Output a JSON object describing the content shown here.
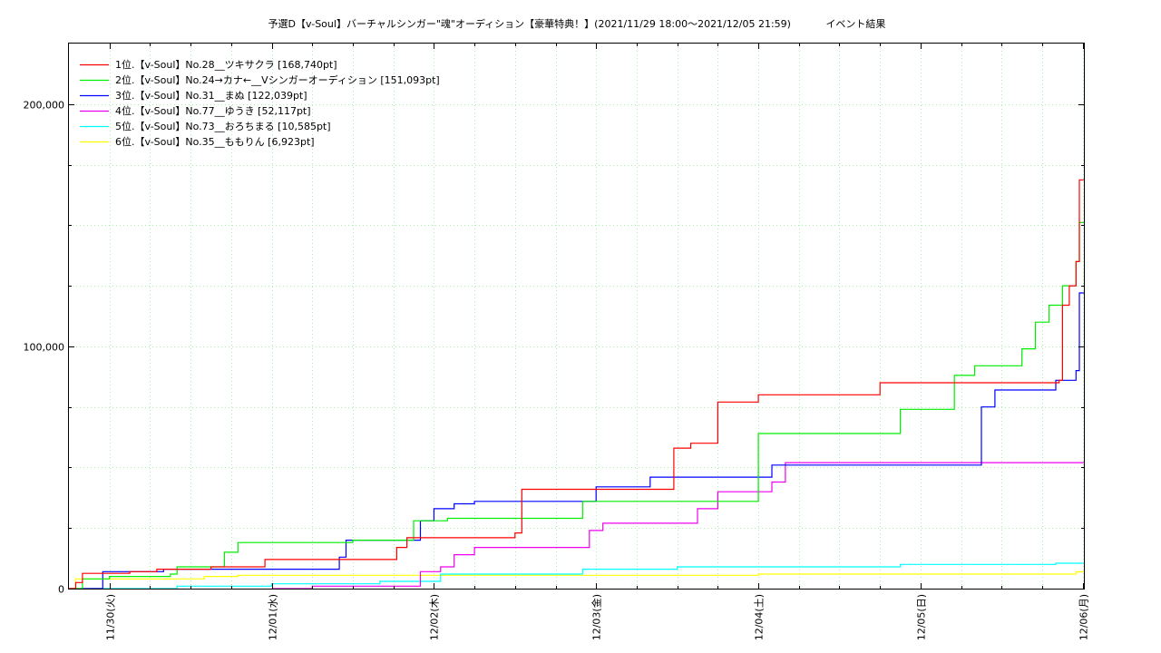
{
  "chart_data": {
    "type": "line",
    "title": "予選D【v-Soul】バーチャルシンガー\"魂\"オーディション【豪華特典！】(2021/11/29 18:00～2021/12/05 21:59)",
    "subtitle": "イベント結果",
    "xlabel": "",
    "ylabel": "",
    "x_ticks": [
      "11/30(火)",
      "12/01(水)",
      "12/02(木)",
      "12/03(金)",
      "12/04(土)",
      "12/05(日)",
      "12/06(月)"
    ],
    "xlim": [
      "2021/11/29 18:00",
      "2021/12/06 00:10"
    ],
    "y_ticks": [
      "0",
      "100,000",
      "200,000"
    ],
    "ylim": [
      0,
      225000
    ],
    "grid": true,
    "legend_position": "top-left",
    "series": [
      {
        "name": "1位.【v-Soul】No.28__ツキサクラ [168,740pt]",
        "color": "#ff0000",
        "points": [
          [
            "11/29 18:00",
            0
          ],
          [
            "11/29 19:00",
            2500
          ],
          [
            "11/29 20:00",
            6300
          ],
          [
            "11/30 03:00",
            7000
          ],
          [
            "11/30 07:00",
            8000
          ],
          [
            "11/30 15:00",
            9000
          ],
          [
            "11/30 23:00",
            12000
          ],
          [
            "12/01 17:00",
            12000
          ],
          [
            "12/01 18:30",
            17000
          ],
          [
            "12/01 20:00",
            21000
          ],
          [
            "12/02 12:00",
            23000
          ],
          [
            "12/02 13:00",
            41000
          ],
          [
            "12/03 11:00",
            41000
          ],
          [
            "12/03 11:30",
            58000
          ],
          [
            "12/03 14:00",
            60000
          ],
          [
            "12/03 18:00",
            77000
          ],
          [
            "12/03 22:00",
            77000
          ],
          [
            "12/04 00:00",
            80000
          ],
          [
            "12/04 12:00",
            80000
          ],
          [
            "12/04 17:00",
            80000
          ],
          [
            "12/04 18:00",
            85000
          ],
          [
            "12/05 19:00",
            85000
          ],
          [
            "12/05 20:30",
            86000
          ],
          [
            "12/05 21:00",
            117000
          ],
          [
            "12/05 22:00",
            125000
          ],
          [
            "12/05 23:00",
            135000
          ],
          [
            "12/05 23:30",
            168740
          ],
          [
            "12/06 00:10",
            168740
          ]
        ]
      },
      {
        "name": "2位.【v-Soul】No.24→カナ←__Vシンガーオーディション [151,093pt]",
        "color": "#00ee00",
        "points": [
          [
            "11/29 18:00",
            0
          ],
          [
            "11/29 20:00",
            4000
          ],
          [
            "11/30 00:00",
            5000
          ],
          [
            "11/30 09:00",
            6000
          ],
          [
            "11/30 10:00",
            9000
          ],
          [
            "11/30 15:00",
            9000
          ],
          [
            "11/30 17:00",
            15000
          ],
          [
            "11/30 19:00",
            19000
          ],
          [
            "12/01 07:00",
            19000
          ],
          [
            "12/01 12:00",
            20000
          ],
          [
            "12/01 18:00",
            20000
          ],
          [
            "12/01 21:00",
            28000
          ],
          [
            "12/02 02:00",
            29000
          ],
          [
            "12/02 14:00",
            29000
          ],
          [
            "12/02 20:00",
            29000
          ],
          [
            "12/02 22:00",
            36000
          ],
          [
            "12/03 20:00",
            36000
          ],
          [
            "12/03 23:00",
            36000
          ],
          [
            "12/04 00:00",
            64000
          ],
          [
            "12/04 19:00",
            64000
          ],
          [
            "12/04 21:00",
            74000
          ],
          [
            "12/05 02:00",
            74000
          ],
          [
            "12/05 05:00",
            88000
          ],
          [
            "12/05 08:00",
            92000
          ],
          [
            "12/05 12:00",
            92000
          ],
          [
            "12/05 15:00",
            99000
          ],
          [
            "12/05 17:00",
            110000
          ],
          [
            "12/05 19:00",
            117000
          ],
          [
            "12/05 21:00",
            125000
          ],
          [
            "12/05 23:00",
            135000
          ],
          [
            "12/05 23:30",
            151093
          ],
          [
            "12/06 00:10",
            151093
          ]
        ]
      },
      {
        "name": "3位.【v-Soul】No.31__まぬ [122,039pt]",
        "color": "#0000ff",
        "points": [
          [
            "11/29 18:00",
            0
          ],
          [
            "11/29 22:00",
            0
          ],
          [
            "11/29 23:00",
            7000
          ],
          [
            "11/30 07:00",
            7000
          ],
          [
            "11/30 08:00",
            8000
          ],
          [
            "12/01 09:00",
            8000
          ],
          [
            "12/01 10:00",
            13000
          ],
          [
            "12/01 11:00",
            20000
          ],
          [
            "12/01 20:00",
            20000
          ],
          [
            "12/01 22:00",
            28000
          ],
          [
            "12/02 00:00",
            33000
          ],
          [
            "12/02 03:00",
            35000
          ],
          [
            "12/02 06:00",
            36000
          ],
          [
            "12/02 22:00",
            36000
          ],
          [
            "12/03 00:00",
            42000
          ],
          [
            "12/03 08:00",
            46000
          ],
          [
            "12/03 20:00",
            46000
          ],
          [
            "12/04 00:00",
            46000
          ],
          [
            "12/04 02:00",
            51000
          ],
          [
            "12/05 08:00",
            51000
          ],
          [
            "12/05 09:00",
            75000
          ],
          [
            "12/05 11:00",
            82000
          ],
          [
            "12/05 19:00",
            82000
          ],
          [
            "12/05 20:00",
            86000
          ],
          [
            "12/05 22:00",
            86000
          ],
          [
            "12/05 23:00",
            90000
          ],
          [
            "12/05 23:30",
            122039
          ],
          [
            "12/06 00:10",
            122039
          ]
        ]
      },
      {
        "name": "4位.【v-Soul】No.77__ゆうき [52,117pt]",
        "color": "#ee00ee",
        "points": [
          [
            "12/01 00:00",
            0
          ],
          [
            "12/01 06:00",
            1000
          ],
          [
            "12/01 21:00",
            1000
          ],
          [
            "12/01 22:00",
            7000
          ],
          [
            "12/02 01:00",
            9000
          ],
          [
            "12/02 03:00",
            14000
          ],
          [
            "12/02 06:00",
            17000
          ],
          [
            "12/02 20:00",
            17000
          ],
          [
            "12/02 23:00",
            24000
          ],
          [
            "12/03 01:00",
            27000
          ],
          [
            "12/03 13:00",
            27000
          ],
          [
            "12/03 15:00",
            33000
          ],
          [
            "12/03 18:00",
            40000
          ],
          [
            "12/04 02:00",
            44000
          ],
          [
            "12/04 04:00",
            52000
          ],
          [
            "12/06 00:10",
            52117
          ]
        ]
      },
      {
        "name": "5位.【v-Soul】No.73__おろちまる [10,585pt]",
        "color": "#00ffff",
        "points": [
          [
            "11/29 21:00",
            0
          ],
          [
            "11/30 10:00",
            1000
          ],
          [
            "12/01 00:00",
            2000
          ],
          [
            "12/01 16:00",
            3000
          ],
          [
            "12/02 01:00",
            6000
          ],
          [
            "12/02 21:00",
            6000
          ],
          [
            "12/02 22:00",
            8000
          ],
          [
            "12/03 12:00",
            9000
          ],
          [
            "12/04 00:00",
            9000
          ],
          [
            "12/04 21:00",
            10000
          ],
          [
            "12/05 20:00",
            10500
          ],
          [
            "12/06 00:10",
            10585
          ]
        ]
      },
      {
        "name": "6位.【v-Soul】No.35__ももりん [6,923pt]",
        "color": "#ffff00",
        "points": [
          [
            "11/29 18:00",
            0
          ],
          [
            "11/29 19:00",
            4000
          ],
          [
            "11/30 10:00",
            4000
          ],
          [
            "11/30 14:00",
            5000
          ],
          [
            "11/30 19:00",
            5500
          ],
          [
            "12/02 19:00",
            5500
          ],
          [
            "12/04 00:00",
            6000
          ],
          [
            "12/05 20:00",
            6000
          ],
          [
            "12/05 23:00",
            6923
          ],
          [
            "12/06 00:10",
            6923
          ]
        ]
      }
    ]
  }
}
